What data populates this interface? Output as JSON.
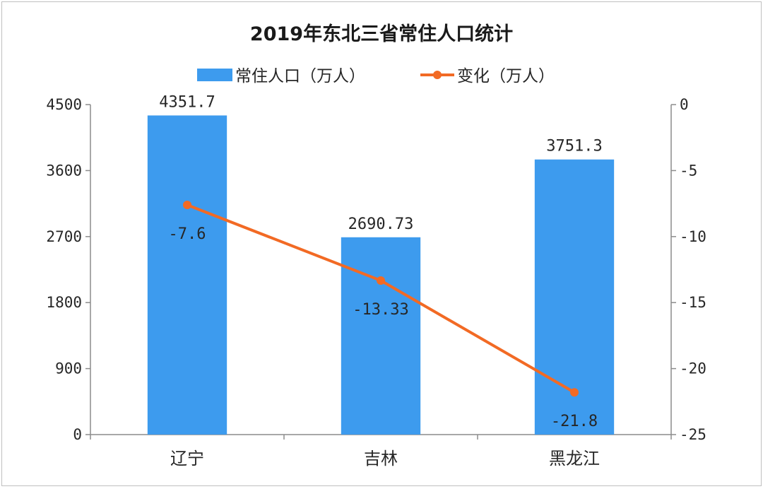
{
  "chart_data": {
    "type": "bar+line",
    "title": "2019年东北三省常住人口统计",
    "categories": [
      "辽宁",
      "吉林",
      "黑龙江"
    ],
    "series": [
      {
        "name": "常住人口（万人）",
        "type": "bar",
        "axis": "left",
        "values": [
          4351.7,
          2690.73,
          3751.3
        ],
        "labels": [
          "4351.7",
          "2690.73",
          "3751.3"
        ],
        "color": "#3d9bee"
      },
      {
        "name": "变化（万人）",
        "type": "line",
        "axis": "right",
        "values": [
          -7.6,
          -13.33,
          -21.8
        ],
        "labels": [
          "-7.6",
          "-13.33",
          "-21.8"
        ],
        "color": "#f26a24"
      }
    ],
    "y_left": {
      "min": 0,
      "max": 4500,
      "ticks": [
        "0",
        "900",
        "1800",
        "2700",
        "3600",
        "4500"
      ]
    },
    "y_right": {
      "min": -25,
      "max": 0,
      "ticks": [
        "0",
        "-5",
        "-10",
        "-15",
        "-20",
        "-25"
      ]
    },
    "grid": false,
    "legend_position": "top"
  }
}
